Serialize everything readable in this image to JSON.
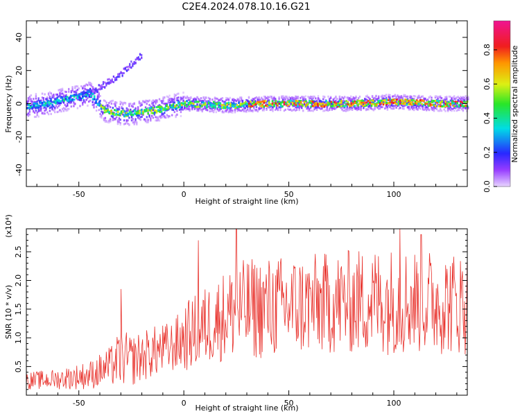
{
  "title": "C2E4.2024.078.10.16.G21",
  "colorbar": {
    "label": "Normalized spectral amplitude",
    "ticks": [
      "0.0",
      "0.2",
      "0.4",
      "0.6",
      "0.8"
    ]
  },
  "chart_data": [
    {
      "type": "heatmap",
      "title": "C2E4.2024.078.10.16.G21",
      "xlabel": "Height of straight line (km)",
      "ylabel": "Frequency (Hz)",
      "xlim": [
        -75,
        135
      ],
      "ylim": [
        -50,
        50
      ],
      "xticks": [
        -50,
        0,
        50,
        100
      ],
      "yticks": [
        -40,
        -20,
        0,
        20,
        40
      ],
      "colorscale": "rainbow 0.0 (white/violet) to 1.0 (magenta)",
      "ridge": {
        "x": [
          -75,
          -65,
          -55,
          -45,
          -38,
          -30,
          -25,
          -20,
          -10,
          0,
          20,
          40,
          60,
          80,
          100,
          120,
          135
        ],
        "y": [
          -2,
          0,
          3,
          6,
          -4,
          -6,
          -6,
          -5,
          -3,
          0,
          -1,
          0,
          0,
          0,
          1,
          0,
          0
        ]
      },
      "secondary_branch": {
        "x": [
          -45,
          -40,
          -35,
          -30,
          -25,
          -20
        ],
        "y": [
          6,
          10,
          14,
          18,
          24,
          30
        ]
      }
    },
    {
      "type": "line",
      "xlabel": "Height of straight line (km)",
      "ylabel": "SNR (10 * v/v)",
      "yscale_note": "(x10⁴)",
      "xlim": [
        -75,
        135
      ],
      "ylim": [
        0,
        2.9
      ],
      "xticks": [
        -50,
        0,
        50,
        100
      ],
      "yticks": [
        0.5,
        1.0,
        1.5,
        2.0,
        2.5
      ],
      "series": [
        {
          "color": "#e8302a",
          "trend_x": [
            -75,
            -60,
            -45,
            -35,
            -30,
            -25,
            -15,
            -5,
            0,
            10,
            20,
            30,
            50,
            70,
            90,
            110,
            135
          ],
          "trend_mean": [
            0.25,
            0.28,
            0.35,
            0.5,
            0.65,
            0.6,
            0.75,
            0.85,
            1.0,
            1.2,
            1.4,
            1.5,
            1.55,
            1.6,
            1.65,
            1.65,
            1.6
          ],
          "trend_spread": [
            0.15,
            0.18,
            0.25,
            0.35,
            0.5,
            0.45,
            0.45,
            0.45,
            0.6,
            0.7,
            0.8,
            0.9,
            0.9,
            0.9,
            0.95,
            0.95,
            0.9
          ],
          "peaks": [
            {
              "x": -30,
              "y": 1.85
            },
            {
              "x": 7,
              "y": 2.7
            },
            {
              "x": 25,
              "y": 2.9
            },
            {
              "x": 103,
              "y": 2.9
            },
            {
              "x": 113,
              "y": 2.8
            }
          ]
        }
      ]
    }
  ]
}
